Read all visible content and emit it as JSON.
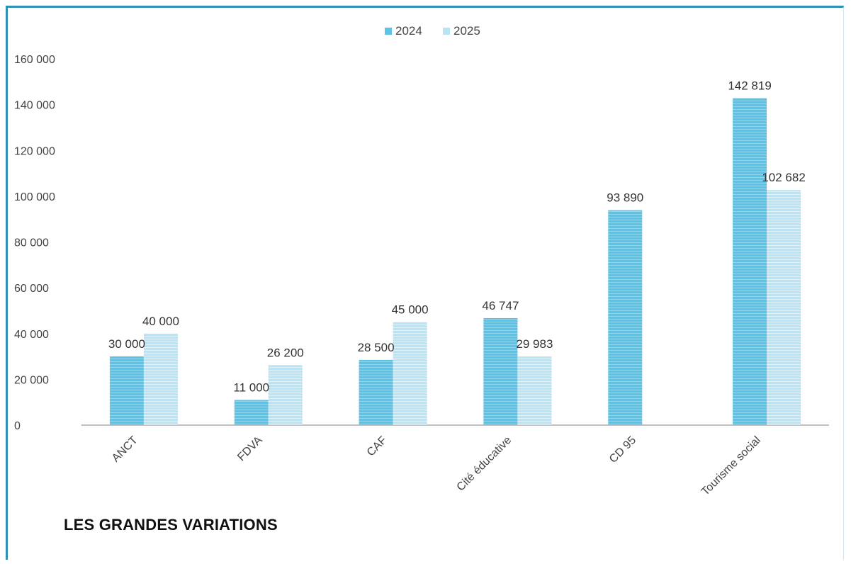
{
  "chart_data": {
    "type": "bar",
    "categories": [
      "ANCT",
      "FDVA",
      "CAF",
      "Cité éducative",
      "CD 95",
      "Tourisme social"
    ],
    "series": [
      {
        "name": "2024",
        "values": [
          30000,
          11000,
          28500,
          46747,
          93890,
          142819
        ],
        "labels": [
          "30 000",
          "11 000",
          "28 500",
          "46 747",
          "93 890",
          "142 819"
        ]
      },
      {
        "name": "2025",
        "values": [
          40000,
          26200,
          45000,
          29983,
          null,
          102682
        ],
        "labels": [
          "40 000",
          "26 200",
          "45 000",
          "29 983",
          "",
          "102 682"
        ]
      }
    ],
    "ylim": [
      0,
      160000
    ],
    "yticks": [
      0,
      20000,
      40000,
      60000,
      80000,
      100000,
      120000,
      140000,
      160000
    ],
    "ytick_labels": [
      "0",
      "20 000",
      "40 000",
      "60 000",
      "80 000",
      "100 000",
      "120 000",
      "140 000",
      "160 000"
    ],
    "legend_position": "top-center",
    "grid": false
  },
  "colors": {
    "series_2024": "#5bc4e6",
    "series_2025": "#b9e4f4",
    "frame": "#2e8fb8"
  },
  "footer": {
    "title": "LES GRANDES VARIATIONS"
  }
}
